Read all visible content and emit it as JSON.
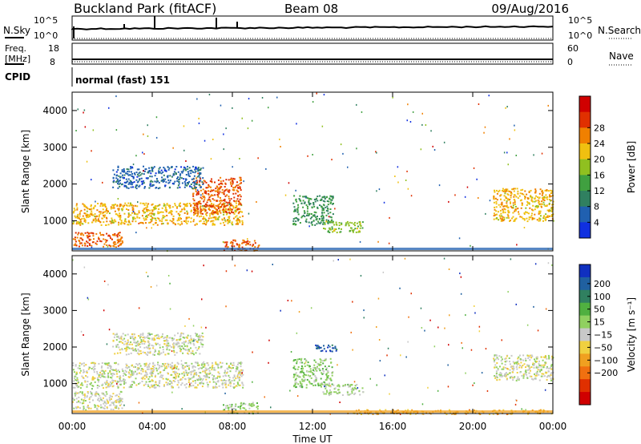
{
  "header": {
    "station": "Buckland Park (fitACF)",
    "beam": "Beam 08",
    "date": "09/Aug/2016"
  },
  "strip_panels": {
    "noise": {
      "left_label": "N.Sky",
      "right_label": "N.Search",
      "left_ticks": [
        "10^5",
        "10^0"
      ],
      "right_ticks": [
        "10^5",
        "10^0"
      ]
    },
    "freq": {
      "left_label_1": "Freq.",
      "left_label_2": "[MHz]",
      "right_label": "Nave",
      "left_ticks": [
        "18",
        "8"
      ],
      "right_ticks": [
        "60",
        "0"
      ]
    },
    "cpid": {
      "left_label": "CPID",
      "program": "normal (fast) 151"
    }
  },
  "x_axis": {
    "title": "Time UT",
    "ticks": [
      "00:00",
      "04:00",
      "08:00",
      "12:00",
      "16:00",
      "20:00",
      "00:00"
    ]
  },
  "panels": [
    {
      "ylabel": "Slant Range [km]",
      "yticks": [
        "1000",
        "2000",
        "3000",
        "4000"
      ],
      "colorbar": {
        "label": "Power [dB]",
        "ticks": [
          "4",
          "8",
          "12",
          "16",
          "20",
          "24",
          "28"
        ],
        "colors": [
          "#1030e0",
          "#2060b0",
          "#308060",
          "#40a040",
          "#90c020",
          "#f0c010",
          "#f08000",
          "#e03000",
          "#d00000"
        ]
      }
    },
    {
      "ylabel": "Slant Range [km]",
      "yticks": [
        "1000",
        "2000",
        "3000",
        "4000"
      ],
      "colorbar": {
        "label": "Velocity [m s⁻¹]",
        "ticks": [
          "200",
          "100",
          "50",
          "15",
          "−15",
          "−50",
          "−100",
          "−200"
        ],
        "colors": [
          "#1030c0",
          "#2060a0",
          "#308060",
          "#50b040",
          "#90d060",
          "#c8c8c8",
          "#f0d040",
          "#f0a020",
          "#f07010",
          "#e03000",
          "#d00000"
        ]
      }
    }
  ],
  "chart_data": {
    "type": "heatmap",
    "title": "Buckland Park (fitACF)",
    "xlabel": "Time UT",
    "ylabel": "Slant Range [km]",
    "xlim": [
      0,
      24
    ],
    "ylim": [
      180,
      4500
    ],
    "x_ticks": [
      "00:00",
      "04:00",
      "08:00",
      "12:00",
      "16:00",
      "20:00",
      "00:00"
    ],
    "y_ticks": [
      1000,
      2000,
      3000,
      4000
    ],
    "panels": [
      {
        "quantity": "Power [dB]",
        "color_range": [
          3,
          30
        ],
        "regions": [
          {
            "t_start": 0.0,
            "t_end": 8.5,
            "range_low": 900,
            "range_high": 1500,
            "value": 20
          },
          {
            "t_start": 6.0,
            "t_end": 8.4,
            "range_low": 1200,
            "range_high": 2200,
            "value": 24
          },
          {
            "t_start": 0.0,
            "t_end": 2.5,
            "range_low": 300,
            "range_high": 700,
            "value": 24
          },
          {
            "t_start": 2.0,
            "t_end": 6.5,
            "range_low": 1900,
            "range_high": 2500,
            "value": 8
          },
          {
            "t_start": 7.5,
            "t_end": 9.3,
            "range_low": 200,
            "range_high": 500,
            "value": 24
          },
          {
            "t_start": 11.0,
            "t_end": 13.0,
            "range_low": 900,
            "range_high": 1700,
            "value": 12
          },
          {
            "t_start": 12.5,
            "t_end": 14.5,
            "range_low": 700,
            "range_high": 1000,
            "value": 16
          },
          {
            "t_start": 21.0,
            "t_end": 24.0,
            "range_low": 1000,
            "range_high": 1900,
            "value": 20
          }
        ]
      },
      {
        "quantity": "Velocity [m s-1]",
        "color_range": [
          -200,
          200
        ],
        "regions": [
          {
            "t_start": 0.0,
            "t_end": 8.5,
            "range_low": 900,
            "range_high": 1600,
            "value": 0
          },
          {
            "t_start": 0.0,
            "t_end": 2.5,
            "range_low": 300,
            "range_high": 800,
            "value": 0
          },
          {
            "t_start": 2.0,
            "t_end": 6.5,
            "range_low": 1800,
            "range_high": 2400,
            "value": 0
          },
          {
            "t_start": 7.5,
            "t_end": 9.3,
            "range_low": 200,
            "range_high": 500,
            "value": 30
          },
          {
            "t_start": 11.0,
            "t_end": 13.0,
            "range_low": 900,
            "range_high": 1700,
            "value": 40
          },
          {
            "t_start": 12.5,
            "t_end": 14.5,
            "range_low": 700,
            "range_high": 1000,
            "value": 20
          },
          {
            "t_start": 12.0,
            "t_end": 13.2,
            "range_low": 1900,
            "range_high": 2100,
            "value": 150
          },
          {
            "t_start": 14.0,
            "t_end": 24.0,
            "range_low": 180,
            "range_high": 300,
            "value": -60
          },
          {
            "t_start": 21.0,
            "t_end": 24.0,
            "range_low": 1100,
            "range_high": 1800,
            "value": 0
          }
        ]
      }
    ]
  }
}
